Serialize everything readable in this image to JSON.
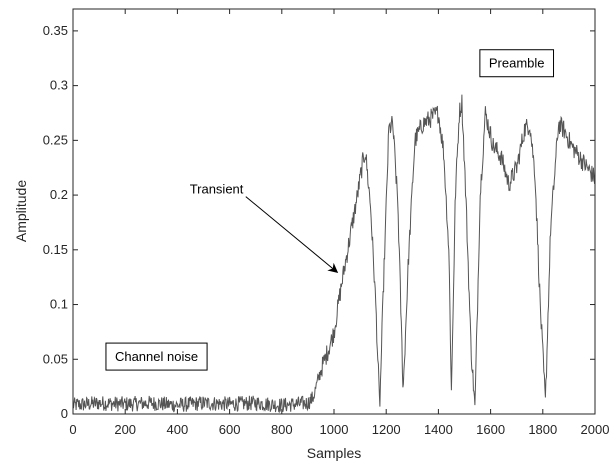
{
  "chart_data": {
    "type": "line",
    "title": "",
    "xlabel": "Samples",
    "ylabel": "Amplitude",
    "xlim": [
      0,
      2000
    ],
    "ylim": [
      0,
      0.37
    ],
    "xticks": [
      0,
      200,
      400,
      600,
      800,
      1000,
      1200,
      1400,
      1600,
      1800,
      2000
    ],
    "yticks": [
      0,
      0.05,
      0.1,
      0.15,
      0.2,
      0.25,
      0.3,
      0.35
    ],
    "xtick_labels": [
      "0",
      "200",
      "400",
      "600",
      "800",
      "1000",
      "1200",
      "1400",
      "1600",
      "1800",
      "2000"
    ],
    "ytick_labels": [
      "0",
      "0.05",
      "0.1",
      "0.15",
      "0.2",
      "0.25",
      "0.3",
      "0.35"
    ],
    "grid": false,
    "legend": "none",
    "line_color": "#555555",
    "series": [
      {
        "x": [
          0,
          100,
          200,
          300,
          400,
          500,
          600,
          700,
          800,
          900,
          920,
          950,
          980,
          1000,
          1030,
          1060,
          1090,
          1110,
          1120,
          1140,
          1160,
          1175,
          1190,
          1210,
          1225,
          1245,
          1265,
          1285,
          1310,
          1340,
          1370,
          1400,
          1420,
          1440,
          1450,
          1465,
          1480,
          1490,
          1505,
          1525,
          1540,
          1560,
          1580,
          1610,
          1640,
          1670,
          1700,
          1730,
          1750,
          1770,
          1790,
          1810,
          1830,
          1860,
          1880,
          1910,
          1940,
          1970,
          2000
        ],
        "y": [
          0.008,
          0.01,
          0.009,
          0.01,
          0.008,
          0.01,
          0.009,
          0.01,
          0.008,
          0.01,
          0.015,
          0.04,
          0.06,
          0.075,
          0.12,
          0.16,
          0.2,
          0.23,
          0.24,
          0.19,
          0.1,
          0.005,
          0.12,
          0.26,
          0.265,
          0.19,
          0.02,
          0.14,
          0.25,
          0.265,
          0.27,
          0.275,
          0.24,
          0.15,
          0.02,
          0.2,
          0.275,
          0.285,
          0.2,
          0.06,
          0.005,
          0.2,
          0.275,
          0.245,
          0.235,
          0.21,
          0.225,
          0.26,
          0.265,
          0.22,
          0.1,
          0.01,
          0.17,
          0.265,
          0.26,
          0.245,
          0.235,
          0.225,
          0.215
        ]
      }
    ],
    "annotations": [
      {
        "text": "Preamble",
        "x": 1700,
        "y": 0.32,
        "boxed": true
      },
      {
        "text": "Channel noise",
        "x": 320,
        "y": 0.052,
        "boxed": true
      },
      {
        "text": "Transient",
        "x": 550,
        "y": 0.205,
        "boxed": false,
        "arrow_to": [
          1010,
          0.13
        ]
      }
    ]
  }
}
